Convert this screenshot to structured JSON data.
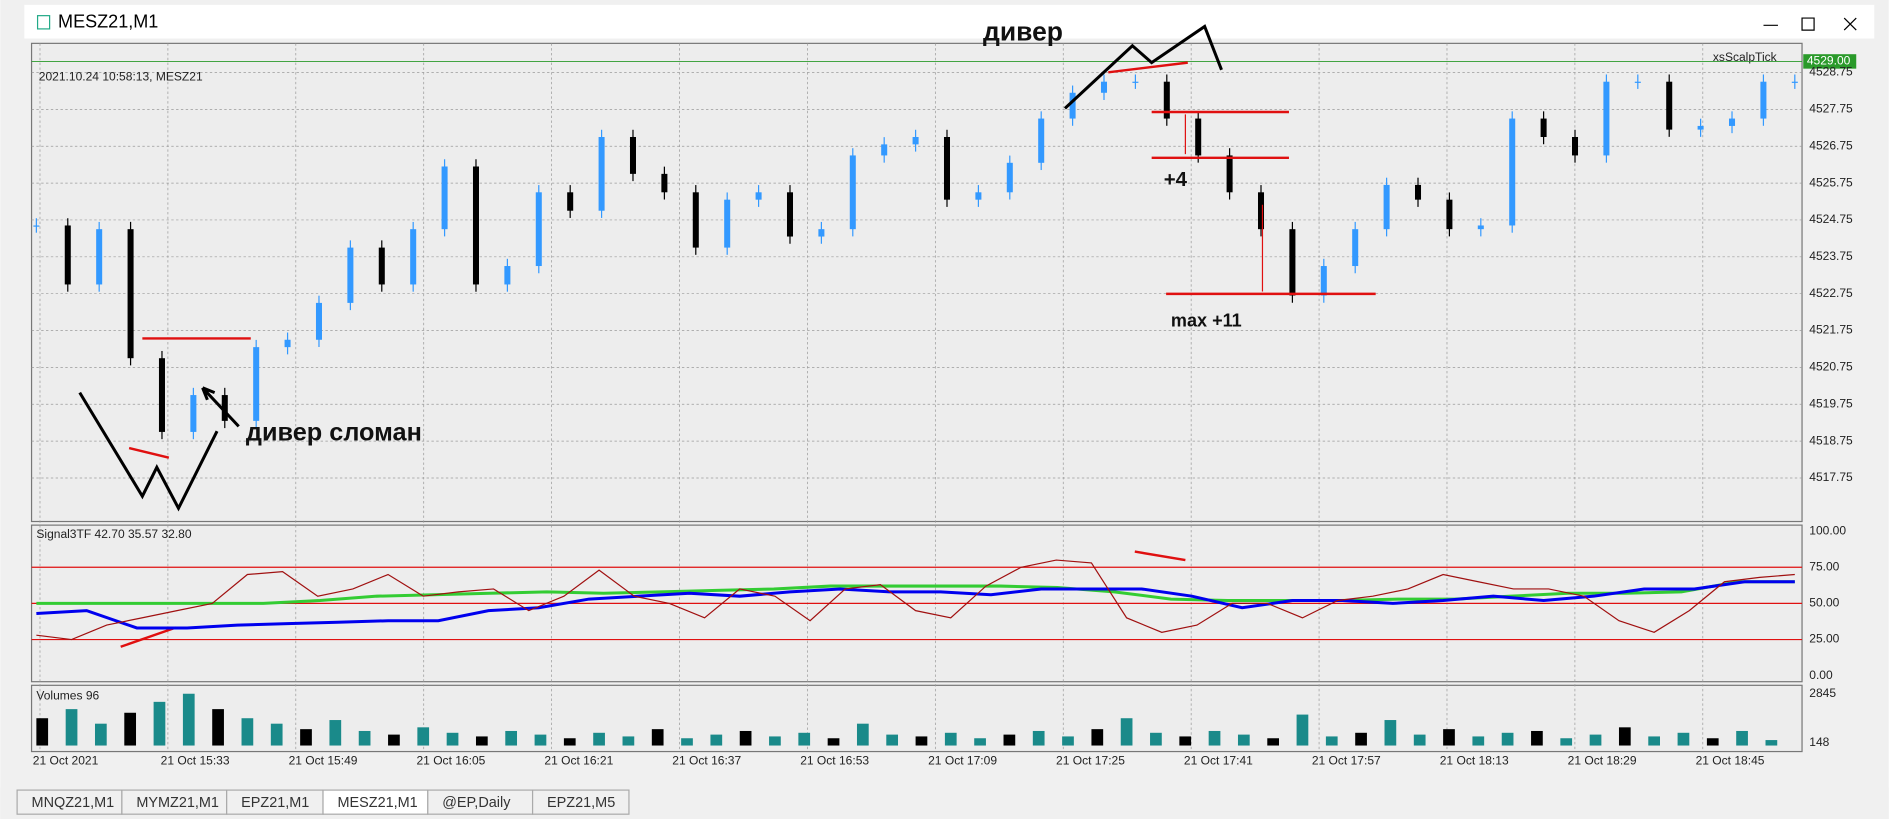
{
  "window": {
    "title": "MESZ21,M1"
  },
  "chart": {
    "info": "2021.10.24 10:58:13, MESZ21",
    "indicator": "xsScalpTick",
    "current_price": "4529.00",
    "ylim": [
      4516.57,
      4529.54
    ],
    "price_ticks": [
      4528.75,
      4527.75,
      4526.75,
      4525.75,
      4524.75,
      4523.75,
      4522.75,
      4521.75,
      4520.75,
      4519.75,
      4518.75,
      4517.75
    ],
    "time_labels": [
      "21 Oct 2021",
      "21 Oct 15:33",
      "21 Oct 15:49",
      "21 Oct 16:05",
      "21 Oct 16:21",
      "21 Oct 16:37",
      "21 Oct 16:53",
      "21 Oct 17:09",
      "21 Oct 17:25",
      "21 Oct 17:41",
      "21 Oct 17:57",
      "21 Oct 18:13",
      "21 Oct 18:29",
      "21 Oct 18:45"
    ],
    "closes": [
      4524.6,
      4523,
      4524.5,
      4521,
      4519,
      4520,
      4519.3,
      4521.3,
      4521.5,
      4522.5,
      4524,
      4523,
      4524.5,
      4526.2,
      4523,
      4523.5,
      4525.5,
      4525,
      4527,
      4526,
      4525.5,
      4524,
      4525.3,
      4525.5,
      4524.3,
      4524.5,
      4526.5,
      4526.8,
      4527,
      4525.3,
      4525.5,
      4526.3,
      4527.5,
      4528.2,
      4528.5,
      4528.5,
      4527.5,
      4526.5,
      4525.5,
      4524.5,
      4522.7,
      4523.5,
      4524.5,
      4525.7,
      4525.3,
      4524.5,
      4524.6,
      4527.5,
      4527,
      4526.5,
      4528.5,
      4528.5,
      4527.2,
      4527.3,
      4527.5,
      4528.5,
      4528.5
    ]
  },
  "oscillator": {
    "label": "Signal3TF 42.70 35.57 32.80",
    "ylim": [
      -4.17,
      104.17
    ],
    "ticks": [
      {
        "value": 100,
        "label": "100.00"
      },
      {
        "value": 75,
        "label": "75.00"
      },
      {
        "value": 50,
        "label": "50.00"
      },
      {
        "value": 25,
        "label": "25.00"
      },
      {
        "value": 0,
        "label": "0.00"
      }
    ],
    "levels": [
      75,
      50,
      25
    ],
    "series": [
      {
        "color": "#33cc33",
        "values": [
          50,
          50,
          50,
          50,
          50,
          52,
          55,
          56,
          57,
          58,
          57,
          58,
          59,
          60,
          62,
          62,
          62,
          62,
          61,
          58,
          53,
          52,
          52,
          52,
          53,
          53,
          55,
          57,
          57,
          58,
          65,
          65
        ]
      },
      {
        "color": "#0000ee",
        "values": [
          43,
          45,
          33,
          33,
          35,
          36,
          37,
          38,
          38,
          45,
          47,
          53,
          55,
          57,
          55,
          58,
          60,
          58,
          58,
          56,
          60,
          60,
          60,
          55,
          47,
          52,
          52,
          50,
          52,
          55,
          52,
          55,
          60,
          60,
          65,
          65
        ]
      },
      {
        "color": "#a01010",
        "values": [
          28,
          25,
          35,
          40,
          45,
          50,
          70,
          72,
          55,
          60,
          70,
          55,
          58,
          60,
          45,
          55,
          73,
          55,
          50,
          40,
          60,
          55,
          38,
          60,
          63,
          45,
          40,
          62,
          75,
          80,
          78,
          40,
          30,
          35,
          50,
          50,
          40,
          52,
          55,
          60,
          70,
          65,
          60,
          60,
          55,
          38,
          30,
          45,
          65,
          68,
          70
        ]
      }
    ]
  },
  "volume": {
    "label": "Volumes 96",
    "ylim": [
      0,
      2845
    ],
    "ticks": [
      2845,
      148
    ],
    "values": [
      1500,
      2000,
      1200,
      1800,
      2400,
      2845,
      2000,
      1500,
      1200,
      900,
      1400,
      800,
      600,
      1000,
      700,
      500,
      800,
      600,
      400,
      700,
      500,
      900,
      400,
      600,
      800,
      500,
      700,
      400,
      1200,
      600,
      500,
      700,
      400,
      600,
      800,
      500,
      900,
      1500,
      700,
      500,
      800,
      600,
      400,
      1700,
      500,
      700,
      1400,
      600,
      900,
      500,
      700,
      800,
      400,
      600,
      1000,
      500,
      700,
      400,
      800,
      300
    ]
  },
  "tabs": [
    "MNQZ21,M1",
    "MYMZ21,M1",
    "EPZ21,M1",
    "MESZ21,M1",
    "@EP,Daily",
    "EPZ21,M5"
  ],
  "annotations": {
    "top": "дивер",
    "broken": "дивер сломан",
    "plus4": "+4",
    "max": "max +11"
  }
}
